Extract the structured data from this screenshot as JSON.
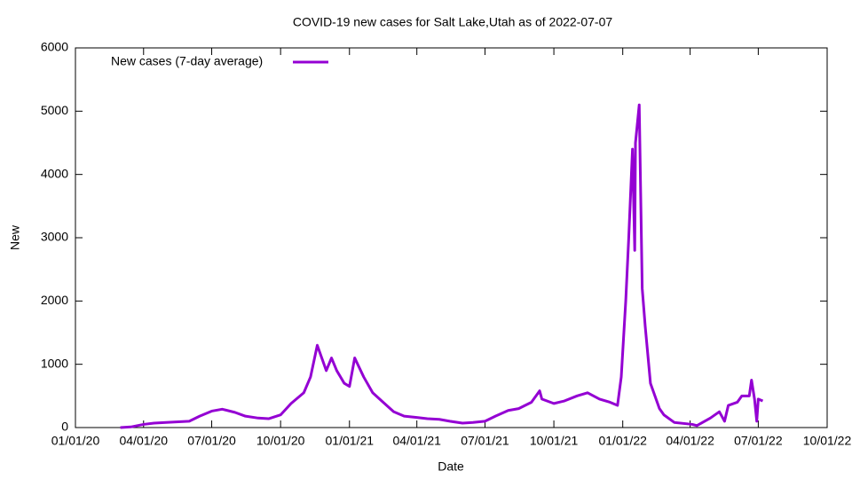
{
  "chart_data": {
    "type": "line",
    "title": "COVID-19 new cases for Salt Lake,Utah as of 2022-07-07",
    "xlabel": "Date",
    "ylabel": "New",
    "x": [
      "03/01/20",
      "03/15/20",
      "04/01/20",
      "04/15/20",
      "05/01/20",
      "05/15/20",
      "06/01/20",
      "06/15/20",
      "07/01/20",
      "07/15/20",
      "08/01/20",
      "08/15/20",
      "09/01/20",
      "09/15/20",
      "10/01/20",
      "10/15/20",
      "11/01/20",
      "11/10/20",
      "11/19/20",
      "11/25/20",
      "12/01/20",
      "12/08/20",
      "12/15/20",
      "12/25/20",
      "01/01/21",
      "01/08/21",
      "01/20/21",
      "02/01/21",
      "02/15/21",
      "03/01/21",
      "03/15/21",
      "04/01/21",
      "04/15/21",
      "05/01/21",
      "05/15/21",
      "06/01/21",
      "06/15/21",
      "07/01/21",
      "07/15/21",
      "08/01/21",
      "08/15/21",
      "09/01/21",
      "09/12/21",
      "09/15/21",
      "10/01/21",
      "10/15/21",
      "11/01/21",
      "11/15/21",
      "12/01/21",
      "12/15/21",
      "12/25/21",
      "12/30/21",
      "01/05/22",
      "01/09/22",
      "01/14/22",
      "01/17/22",
      "01/18/22",
      "01/23/22",
      "01/27/22",
      "01/31/22",
      "02/07/22",
      "02/19/22",
      "02/25/22",
      "03/11/22",
      "04/04/22",
      "04/10/22",
      "04/28/22",
      "05/10/22",
      "05/17/22",
      "05/22/22",
      "06/03/22",
      "06/09/22",
      "06/19/22",
      "06/22/22",
      "06/26/22",
      "06/29/22",
      "07/01/22",
      "07/07/22"
    ],
    "series": [
      {
        "name": "New cases (7-day average)",
        "color": "#9400d3",
        "values": [
          0,
          10,
          50,
          70,
          80,
          90,
          100,
          180,
          260,
          290,
          240,
          180,
          150,
          140,
          200,
          380,
          550,
          800,
          1300,
          1100,
          900,
          1100,
          900,
          700,
          650,
          1100,
          800,
          550,
          400,
          250,
          180,
          160,
          140,
          130,
          100,
          70,
          80,
          100,
          180,
          270,
          300,
          400,
          580,
          450,
          380,
          420,
          500,
          550,
          450,
          400,
          350,
          800,
          2000,
          3000,
          4400,
          2800,
          4500,
          5100,
          2200,
          1600,
          700,
          300,
          200,
          80,
          50,
          30,
          150,
          250,
          100,
          350,
          400,
          500,
          500,
          750,
          450,
          100,
          450,
          420
        ]
      }
    ],
    "xlim": [
      "01/01/20",
      "10/01/22"
    ],
    "xticks": [
      "01/01/20",
      "04/01/20",
      "07/01/20",
      "10/01/20",
      "01/01/21",
      "04/01/21",
      "07/01/21",
      "10/01/21",
      "01/01/22",
      "04/01/22",
      "07/01/22",
      "10/01/22"
    ],
    "ylim": [
      0,
      6000
    ],
    "yticks": [
      0,
      1000,
      2000,
      3000,
      4000,
      5000,
      6000
    ],
    "legend": "top left"
  }
}
